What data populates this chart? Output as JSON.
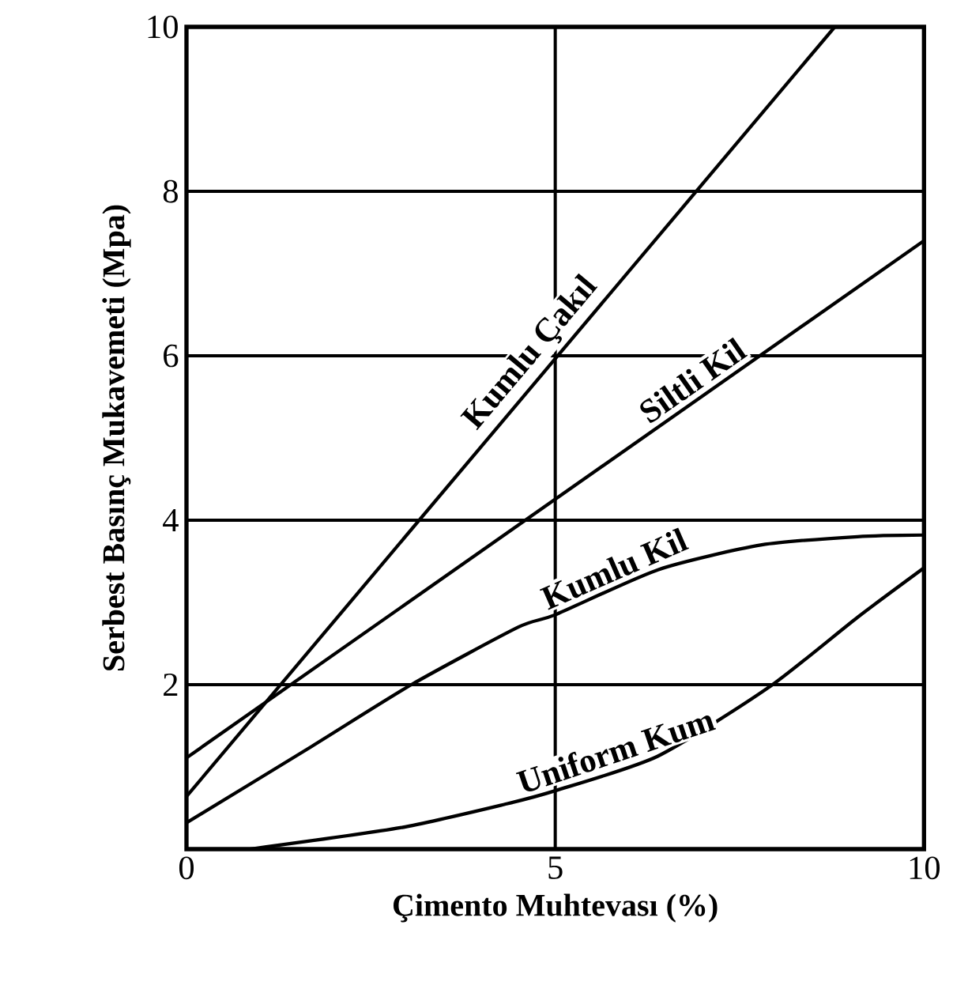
{
  "chart_data": {
    "type": "line",
    "xlabel": "Çimento Muhtevası (%)",
    "ylabel": "Serbest Basınç Mukavemeti (Mpa)",
    "xlim": [
      0,
      10
    ],
    "ylim": [
      0,
      10
    ],
    "xticks": [
      0,
      5,
      10
    ],
    "yticks": [
      2,
      4,
      6,
      8,
      10
    ],
    "grid": true,
    "series": [
      {
        "name": "Kumlu Çakıl",
        "color": "#000000",
        "x": [
          0,
          8.79
        ],
        "values": [
          0.64,
          10
        ]
      },
      {
        "name": "Siltli Kil",
        "color": "#000000",
        "x": [
          0,
          10
        ],
        "values": [
          1.11,
          7.4
        ]
      },
      {
        "name": "Kumlu Kil",
        "color": "#000000",
        "x": [
          0,
          1.7,
          3.05,
          4.5,
          5,
          6.4,
          7.8,
          9.1,
          10
        ],
        "values": [
          0.32,
          1.25,
          2.0,
          2.7,
          2.85,
          3.4,
          3.7,
          3.8,
          3.82
        ]
      },
      {
        "name": "Uniform Kum",
        "color": "#000000",
        "x": [
          0.86,
          2.9,
          4.34,
          5,
          6.39,
          7.9,
          9.1,
          10
        ],
        "values": [
          0,
          0.26,
          0.55,
          0.71,
          1.13,
          1.97,
          2.82,
          3.42
        ]
      }
    ]
  }
}
